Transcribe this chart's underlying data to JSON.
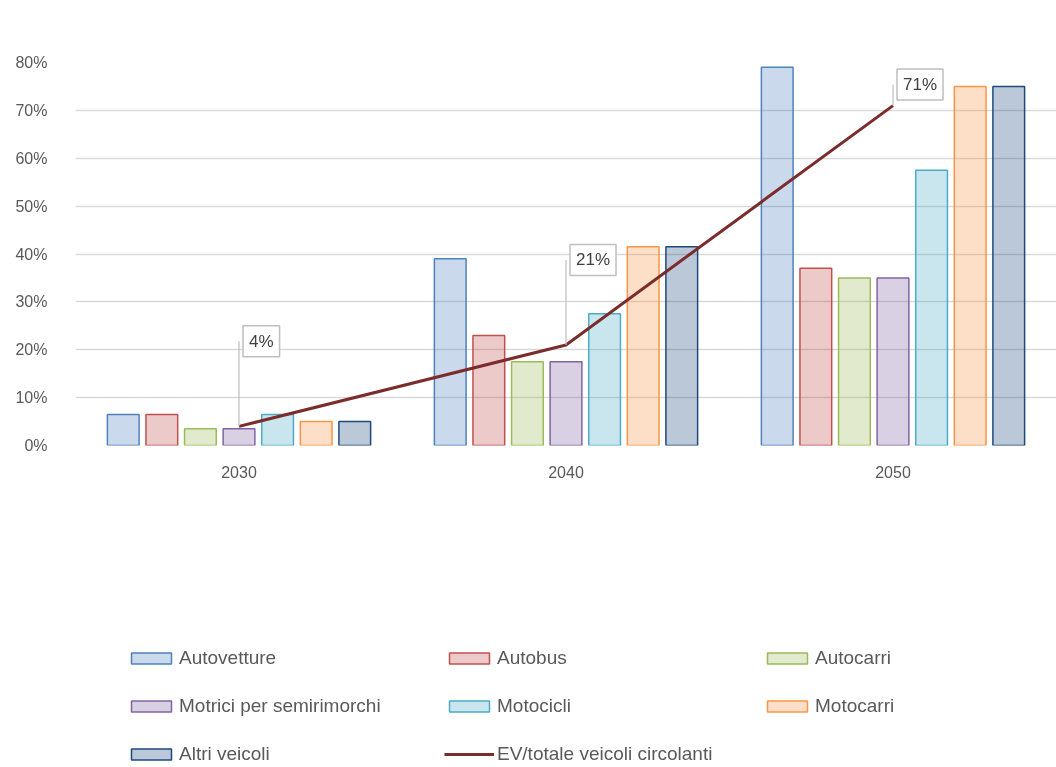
{
  "chart_data": {
    "type": "bar",
    "categories": [
      "2030",
      "2040",
      "2050"
    ],
    "ylim": [
      0,
      80
    ],
    "yticks": [
      {
        "value": 0,
        "label": "0%"
      },
      {
        "value": 10,
        "label": "10%"
      },
      {
        "value": 20,
        "label": "20%"
      },
      {
        "value": 30,
        "label": "30%"
      },
      {
        "value": 40,
        "label": "40%"
      },
      {
        "value": 50,
        "label": "50%"
      },
      {
        "value": 60,
        "label": "60%"
      },
      {
        "value": 70,
        "label": "70%"
      },
      {
        "value": 80,
        "label": "80%"
      }
    ],
    "grid": "y",
    "legend": "bottom",
    "series": [
      {
        "name": "Autovetture",
        "color": "#4f81bd",
        "values": [
          6.5,
          39,
          79
        ]
      },
      {
        "name": "Autobus",
        "color": "#c0504d",
        "values": [
          6.5,
          23,
          37
        ]
      },
      {
        "name": "Autocarri",
        "color": "#9bbb59",
        "values": [
          3.5,
          17.5,
          35
        ]
      },
      {
        "name": "Motrici per semirimorchi",
        "color": "#8064a2",
        "values": [
          3.5,
          17.5,
          35
        ]
      },
      {
        "name": "Motocicli",
        "color": "#4bacc6",
        "values": [
          6.5,
          27.5,
          57.5
        ]
      },
      {
        "name": "Motocarri",
        "color": "#f79646",
        "values": [
          5,
          41.5,
          75
        ]
      },
      {
        "name": "Altri veicoli",
        "color": "#1f497d",
        "values": [
          5,
          41.5,
          75
        ]
      },
      {
        "name": "EV/totale veicoli circolanti",
        "type": "line",
        "color": "#7b2c2c",
        "values": [
          4,
          21,
          71
        ],
        "value_labels": [
          "4%",
          "21%",
          "71%"
        ],
        "marker": "none",
        "line_style": "solid"
      }
    ]
  }
}
